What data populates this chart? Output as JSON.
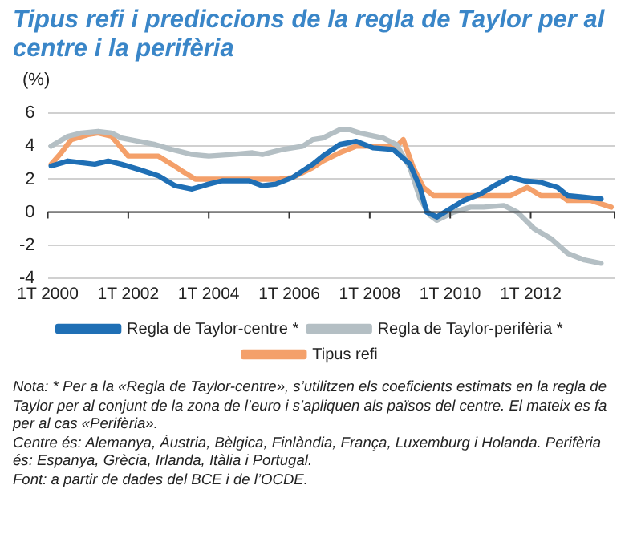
{
  "chart_data": {
    "type": "line",
    "title": "Tipus refi i prediccions de la regla de Taylor per al centre i la perifèria",
    "ylabel": "(%)",
    "xlim": [
      "2000-01",
      "2014-02"
    ],
    "xticks": [
      {
        "value": "2000-01",
        "label": "1T 2000"
      },
      {
        "value": "2002-01",
        "label": "1T 2002"
      },
      {
        "value": "2004-01",
        "label": "1T 2004"
      },
      {
        "value": "2006-01",
        "label": "1T 2006"
      },
      {
        "value": "2008-01",
        "label": "1T 2008"
      },
      {
        "value": "2010-01",
        "label": "1T 2010"
      },
      {
        "value": "2012-01",
        "label": "1T 2012"
      }
    ],
    "ylim": [
      -4,
      6
    ],
    "yticks": [
      -4,
      -2,
      0,
      2,
      4,
      6
    ],
    "grid": "y",
    "legend": "bottom",
    "marker": "none",
    "line_style": "solid",
    "series": [
      {
        "name": "Regla de Taylor-centre *",
        "color": "#1f6fb5",
        "x": [
          "2000-02",
          "2000-07",
          "2000-11",
          "2001-03",
          "2001-07",
          "2001-11",
          "2002-04",
          "2002-10",
          "2003-03",
          "2003-08",
          "2004-01",
          "2004-05",
          "2005-01",
          "2005-05",
          "2005-09",
          "2006-02",
          "2006-08",
          "2006-11",
          "2007-04",
          "2007-09",
          "2008-02",
          "2008-08",
          "2009-01",
          "2009-04",
          "2009-06",
          "2009-09",
          "2010-01",
          "2010-05",
          "2010-10",
          "2011-03",
          "2011-07",
          "2011-11",
          "2012-04",
          "2012-09",
          "2012-12",
          "2013-05",
          "2013-10"
        ],
        "values": [
          2.8,
          3.1,
          3.0,
          2.9,
          3.1,
          2.9,
          2.6,
          2.2,
          1.6,
          1.4,
          1.7,
          1.9,
          1.9,
          1.6,
          1.7,
          2.1,
          2.9,
          3.4,
          4.1,
          4.3,
          3.9,
          3.8,
          2.9,
          1.5,
          0,
          -0.3,
          0.2,
          0.7,
          1.1,
          1.7,
          2.1,
          1.9,
          1.8,
          1.5,
          1.0,
          0.9,
          0.8
        ]
      },
      {
        "name": "Regla de Taylor-perifèria *",
        "color": "#b4bfc4",
        "x": [
          "2000-02",
          "2000-07",
          "2000-11",
          "2001-04",
          "2001-08",
          "2001-11",
          "2002-04",
          "2002-09",
          "2003-02",
          "2003-08",
          "2004-01",
          "2004-08",
          "2005-02",
          "2005-05",
          "2005-11",
          "2006-05",
          "2006-08",
          "2006-11",
          "2007-04",
          "2007-07",
          "2007-10",
          "2008-05",
          "2008-09",
          "2009-01",
          "2009-04",
          "2009-07",
          "2009-09",
          "2010-02",
          "2010-07",
          "2010-11",
          "2011-05",
          "2011-09",
          "2012-02",
          "2012-07",
          "2012-12",
          "2013-05",
          "2013-10"
        ],
        "values": [
          4.0,
          4.6,
          4.8,
          4.9,
          4.8,
          4.5,
          4.3,
          4.1,
          3.8,
          3.5,
          3.4,
          3.5,
          3.6,
          3.5,
          3.8,
          4.0,
          4.4,
          4.5,
          5.0,
          5.0,
          4.8,
          4.5,
          4.1,
          2.7,
          0.8,
          -0.2,
          -0.5,
          0.0,
          0.3,
          0.3,
          0.4,
          0.0,
          -1.0,
          -1.6,
          -2.5,
          -2.9,
          -3.1
        ]
      },
      {
        "name": "Tipus refi",
        "color": "#f4a06a",
        "x": [
          "2000-02",
          "2000-05",
          "2000-08",
          "2001-01",
          "2001-04",
          "2001-08",
          "2002-01",
          "2002-10",
          "2003-02",
          "2003-05",
          "2003-09",
          "2005-10",
          "2006-02",
          "2006-08",
          "2006-11",
          "2007-04",
          "2007-09",
          "2008-09",
          "2008-11",
          "2009-02",
          "2009-05",
          "2009-08",
          "2010-01",
          "2011-07",
          "2011-12",
          "2012-04",
          "2012-10",
          "2012-12",
          "2013-07",
          "2014-01"
        ],
        "values": [
          2.9,
          3.6,
          4.4,
          4.7,
          4.8,
          4.6,
          3.4,
          3.4,
          2.9,
          2.5,
          2.0,
          2.0,
          2.1,
          2.7,
          3.1,
          3.6,
          4.0,
          4.0,
          4.4,
          2.7,
          1.5,
          1.0,
          1.0,
          1.0,
          1.5,
          1.0,
          1.0,
          0.7,
          0.7,
          0.3
        ]
      }
    ],
    "annotations": [
      "Nota: * Per a la «Regla de Taylor-centre», s’utilitzen els coeficients estimats en la regla de Taylor per al conjunt de la zona de l’euro i s’apliquen als països del centre. El mateix es fa per al cas «Perifèria».",
      "Centre és: Alemanya, Àustria, Bèlgica, Finlàndia, França, Luxemburg i Holanda. Perifèria és: Espanya, Grècia, Irlanda, Itàlia i Portugal.",
      "Font: a partir de dades del BCE i de l’OCDE."
    ]
  }
}
